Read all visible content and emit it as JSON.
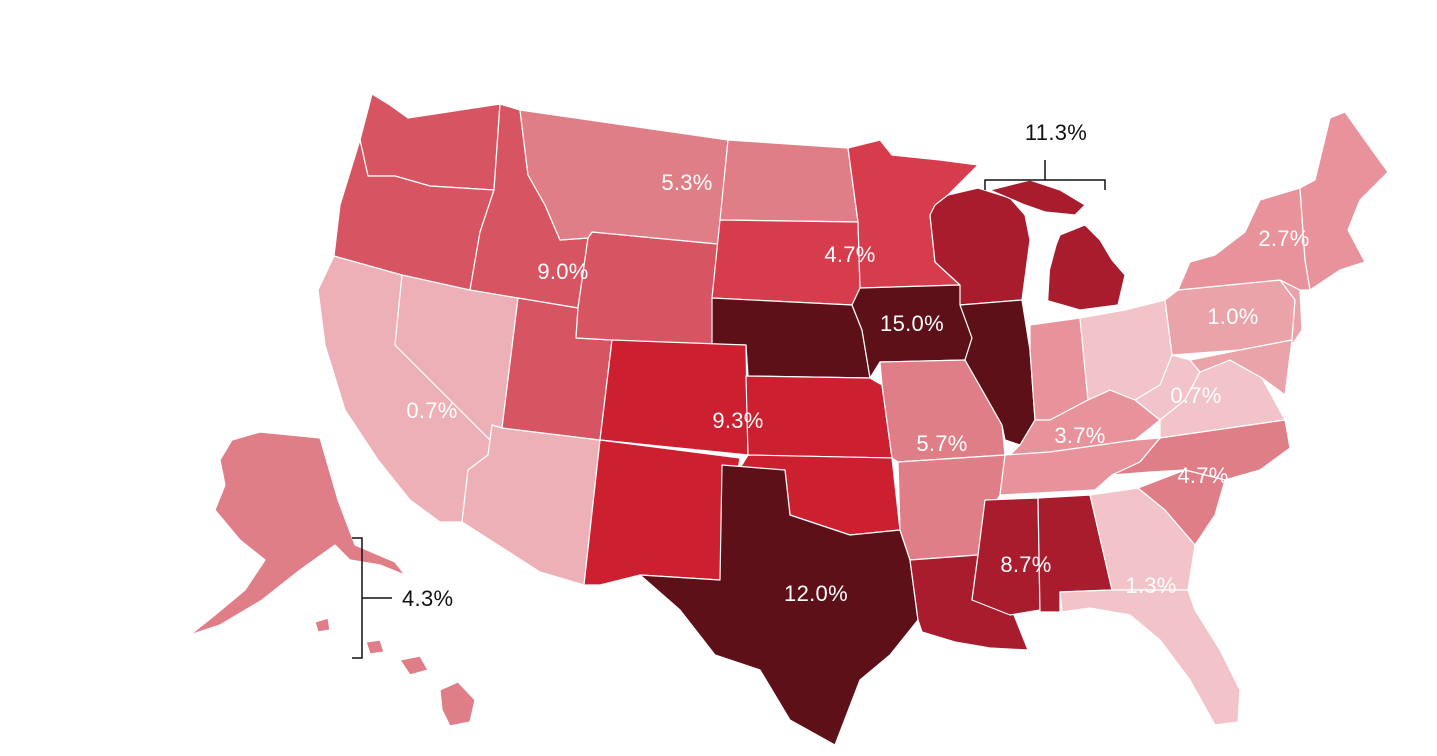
{
  "legend_colors": {
    "very_light": "#f2c3c8",
    "light": "#ecb0b6",
    "light_medium": "#e8939c",
    "medium": "#e07e88",
    "medium_dark": "#d75563",
    "red": "#cc1f30",
    "dark_red": "#a81c2e",
    "darkest": "#5e1019"
  },
  "labels": {
    "west": "0.7%",
    "northwest": "9.0%",
    "montana_dakotas": "5.3%",
    "central_north": "4.7%",
    "iowa_nebraska": "15.0%",
    "great_lakes": "11.3%",
    "northeast": "2.7%",
    "mid_atlantic": "1.0%",
    "southeast_atlantic": "0.7%",
    "mountain": "9.3%",
    "missouri_arkansas": "5.7%",
    "kentucky_tennessee": "3.7%",
    "carolinas": "4.7%",
    "texas": "12.0%",
    "deep_south": "8.7%",
    "florida_georgia": "1.3%",
    "alaska_hawaii": "4.3%"
  }
}
